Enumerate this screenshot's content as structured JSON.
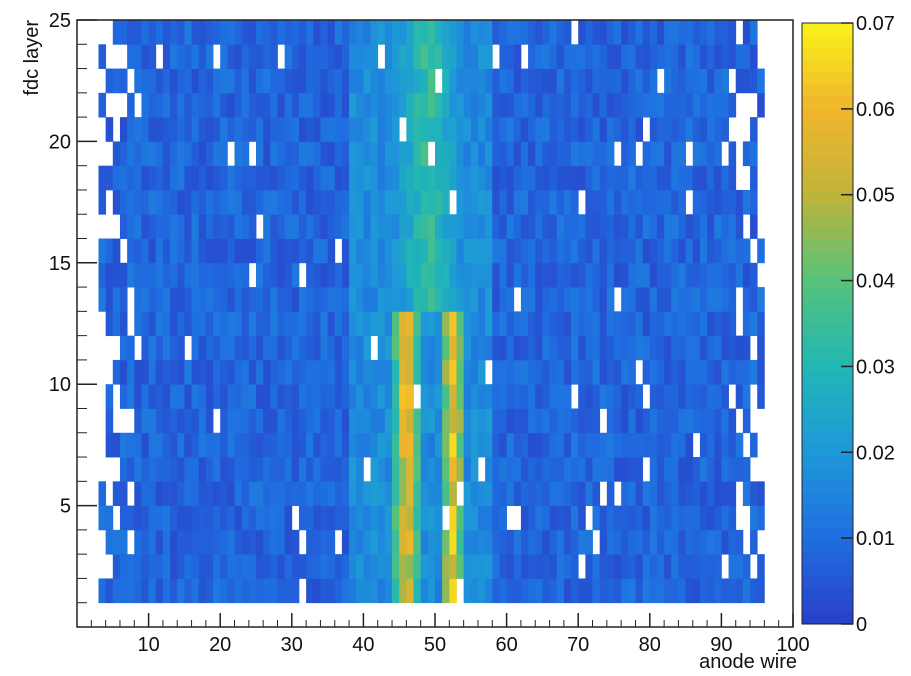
{
  "chart_data": {
    "type": "heatmap",
    "title": "",
    "xlabel": "anode wire",
    "ylabel": "fdc layer",
    "xlim": [
      0,
      100
    ],
    "ylim": [
      0,
      25
    ],
    "x_bins": 100,
    "y_bins": 24,
    "x_ticks": [
      "10",
      "20",
      "30",
      "40",
      "50",
      "60",
      "70",
      "80",
      "90",
      "100"
    ],
    "y_ticks": [
      "5",
      "10",
      "15",
      "20",
      "25"
    ],
    "colorbar": {
      "range": [
        0,
        0.07
      ],
      "ticks": [
        "0",
        "0.01",
        "0.02",
        "0.03",
        "0.04",
        "0.05",
        "0.06",
        "0.07"
      ],
      "palette": [
        "#2a3fc8",
        "#1f6ee0",
        "#1e98d8",
        "#21b7b4",
        "#57c27a",
        "#c0b43a",
        "#f0b52c",
        "#f9f21a"
      ]
    },
    "empty_region": "wires < ~8 and > ~86 sparsely populated (white = empty bins)",
    "features": [
      {
        "description": "bright band",
        "x_center": 46,
        "x_width": 2,
        "y_range": [
          1,
          13
        ],
        "peak_value": 0.07
      },
      {
        "description": "bright band",
        "x_center": 52.5,
        "x_width": 2,
        "y_range": [
          1,
          13
        ],
        "peak_value": 0.065
      },
      {
        "description": "moderate band",
        "x_range": [
          43,
          55
        ],
        "y_range": [
          13,
          25
        ],
        "typical_value": 0.035
      }
    ],
    "background_value": 0.008
  }
}
